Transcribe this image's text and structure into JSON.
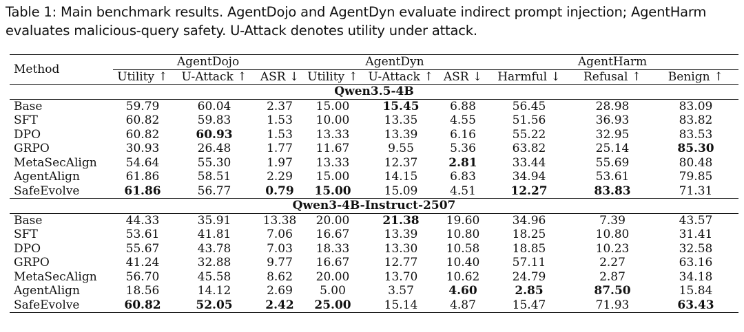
{
  "caption": "Table 1: Main benchmark results. AgentDojo and AgentDyn evaluate indirect prompt injection; AgentHarm evaluates malicious-query safety. U-Attack denotes utility under attack.",
  "header": {
    "method": "Method",
    "groups": [
      "AgentDojo",
      "AgentDyn",
      "AgentHarm"
    ],
    "columns": [
      "Utility ↑",
      "U-Attack ↑",
      "ASR ↓",
      "Utility ↑",
      "U-Attack ↑",
      "ASR ↓",
      "Harmful ↓",
      "Refusal ↑",
      "Benign ↑"
    ]
  },
  "sections": [
    {
      "title": "Qwen3.5-4B",
      "rows": [
        {
          "method": "Base",
          "values": [
            "59.79",
            "60.04",
            "2.37",
            "15.00",
            "15.45",
            "6.88",
            "56.45",
            "28.98",
            "83.09"
          ],
          "bold": [
            4
          ]
        },
        {
          "method": "SFT",
          "values": [
            "60.82",
            "59.83",
            "1.53",
            "10.00",
            "13.35",
            "4.55",
            "51.56",
            "36.93",
            "83.82"
          ],
          "bold": []
        },
        {
          "method": "DPO",
          "values": [
            "60.82",
            "60.93",
            "1.53",
            "13.33",
            "13.39",
            "6.16",
            "55.22",
            "32.95",
            "83.53"
          ],
          "bold": [
            1
          ]
        },
        {
          "method": "GRPO",
          "values": [
            "30.93",
            "26.48",
            "1.77",
            "11.67",
            "9.55",
            "5.36",
            "63.82",
            "25.14",
            "85.30"
          ],
          "bold": [
            8
          ]
        },
        {
          "method": "MetaSecAlign",
          "values": [
            "54.64",
            "55.30",
            "1.97",
            "13.33",
            "12.37",
            "2.81",
            "33.44",
            "55.69",
            "80.48"
          ],
          "bold": [
            5
          ]
        },
        {
          "method": "AgentAlign",
          "values": [
            "61.86",
            "58.51",
            "2.29",
            "15.00",
            "14.15",
            "6.83",
            "34.94",
            "53.61",
            "79.85"
          ],
          "bold": []
        },
        {
          "method": "SafeEvolve",
          "values": [
            "61.86",
            "56.77",
            "0.79",
            "15.00",
            "15.09",
            "4.51",
            "12.27",
            "83.83",
            "71.31"
          ],
          "bold": [
            0,
            2,
            3,
            6,
            7
          ]
        }
      ]
    },
    {
      "title": "Qwen3-4B-Instruct-2507",
      "rows": [
        {
          "method": "Base",
          "values": [
            "44.33",
            "35.91",
            "13.38",
            "20.00",
            "21.38",
            "19.60",
            "34.96",
            "7.39",
            "43.57"
          ],
          "bold": [
            4
          ]
        },
        {
          "method": "SFT",
          "values": [
            "53.61",
            "41.81",
            "7.06",
            "16.67",
            "13.39",
            "10.80",
            "18.25",
            "10.80",
            "31.41"
          ],
          "bold": []
        },
        {
          "method": "DPO",
          "values": [
            "55.67",
            "43.78",
            "7.03",
            "18.33",
            "13.30",
            "10.58",
            "18.85",
            "10.23",
            "32.58"
          ],
          "bold": []
        },
        {
          "method": "GRPO",
          "values": [
            "41.24",
            "32.88",
            "9.77",
            "16.67",
            "12.77",
            "10.40",
            "57.11",
            "2.27",
            "63.16"
          ],
          "bold": []
        },
        {
          "method": "MetaSecAlign",
          "values": [
            "56.70",
            "45.58",
            "8.62",
            "20.00",
            "13.70",
            "10.62",
            "24.79",
            "2.87",
            "34.18"
          ],
          "bold": []
        },
        {
          "method": "AgentAlign",
          "values": [
            "18.56",
            "14.12",
            "2.69",
            "5.00",
            "3.57",
            "4.60",
            "2.85",
            "87.50",
            "15.84"
          ],
          "bold": [
            5,
            6,
            7
          ]
        },
        {
          "method": "SafeEvolve",
          "values": [
            "60.82",
            "52.05",
            "2.42",
            "25.00",
            "15.14",
            "4.87",
            "15.47",
            "71.93",
            "63.43"
          ],
          "bold": [
            0,
            1,
            2,
            3,
            8
          ]
        }
      ]
    }
  ]
}
